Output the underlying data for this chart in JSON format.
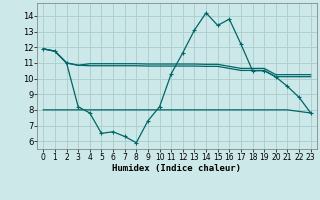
{
  "xlabel": "Humidex (Indice chaleur)",
  "bg_color": "#cce8e8",
  "grid_color": "#aacccc",
  "line_color": "#006666",
  "x_ticks": [
    0,
    1,
    2,
    3,
    4,
    5,
    6,
    7,
    8,
    9,
    10,
    11,
    12,
    13,
    14,
    15,
    16,
    17,
    18,
    19,
    20,
    21,
    22,
    23
  ],
  "y_ticks": [
    6,
    7,
    8,
    9,
    10,
    11,
    12,
    13,
    14
  ],
  "xlim": [
    -0.5,
    23.5
  ],
  "ylim": [
    5.5,
    14.8
  ],
  "s1_x": [
    0,
    1,
    2,
    3,
    4,
    5,
    6,
    7,
    8,
    9,
    10,
    11,
    12,
    13,
    14,
    15,
    16,
    17,
    18,
    19,
    20,
    21,
    22,
    23
  ],
  "s1_y": [
    11.9,
    11.75,
    11.0,
    10.85,
    10.82,
    10.82,
    10.82,
    10.82,
    10.82,
    10.8,
    10.8,
    10.8,
    10.8,
    10.8,
    10.78,
    10.78,
    10.65,
    10.52,
    10.52,
    10.52,
    10.12,
    10.12,
    10.12,
    10.12
  ],
  "s2_x": [
    0,
    1,
    2,
    3,
    4,
    5,
    6,
    7,
    8,
    9,
    10,
    11,
    12,
    13,
    14,
    15,
    16,
    17,
    18,
    19,
    20,
    21,
    22,
    23
  ],
  "s2_y": [
    11.9,
    11.75,
    11.0,
    10.85,
    10.95,
    10.95,
    10.95,
    10.95,
    10.95,
    10.93,
    10.93,
    10.93,
    10.93,
    10.93,
    10.91,
    10.91,
    10.78,
    10.65,
    10.65,
    10.65,
    10.25,
    10.25,
    10.25,
    10.25
  ],
  "s3_x": [
    0,
    1,
    2,
    3,
    4,
    5,
    6,
    7,
    8,
    9,
    10,
    11,
    12,
    13,
    14,
    15,
    16,
    17,
    18,
    19,
    20,
    21,
    22,
    23
  ],
  "s3_y": [
    11.9,
    11.75,
    11.0,
    8.2,
    7.8,
    6.5,
    6.6,
    6.3,
    5.9,
    7.3,
    8.2,
    10.3,
    11.65,
    13.1,
    14.2,
    13.4,
    13.8,
    12.2,
    10.5,
    10.5,
    10.1,
    9.5,
    8.8,
    7.8
  ],
  "s4_x": [
    0,
    1,
    2,
    3,
    4,
    5,
    6,
    7,
    8,
    9,
    10,
    11,
    12,
    13,
    14,
    15,
    16,
    17,
    18,
    19,
    20,
    21,
    22,
    23
  ],
  "s4_y": [
    8.0,
    8.0,
    8.0,
    8.0,
    8.0,
    8.0,
    8.0,
    8.0,
    8.0,
    8.0,
    8.0,
    8.0,
    8.0,
    8.0,
    8.0,
    8.0,
    8.0,
    8.0,
    8.0,
    8.0,
    8.0,
    8.0,
    7.9,
    7.8
  ]
}
